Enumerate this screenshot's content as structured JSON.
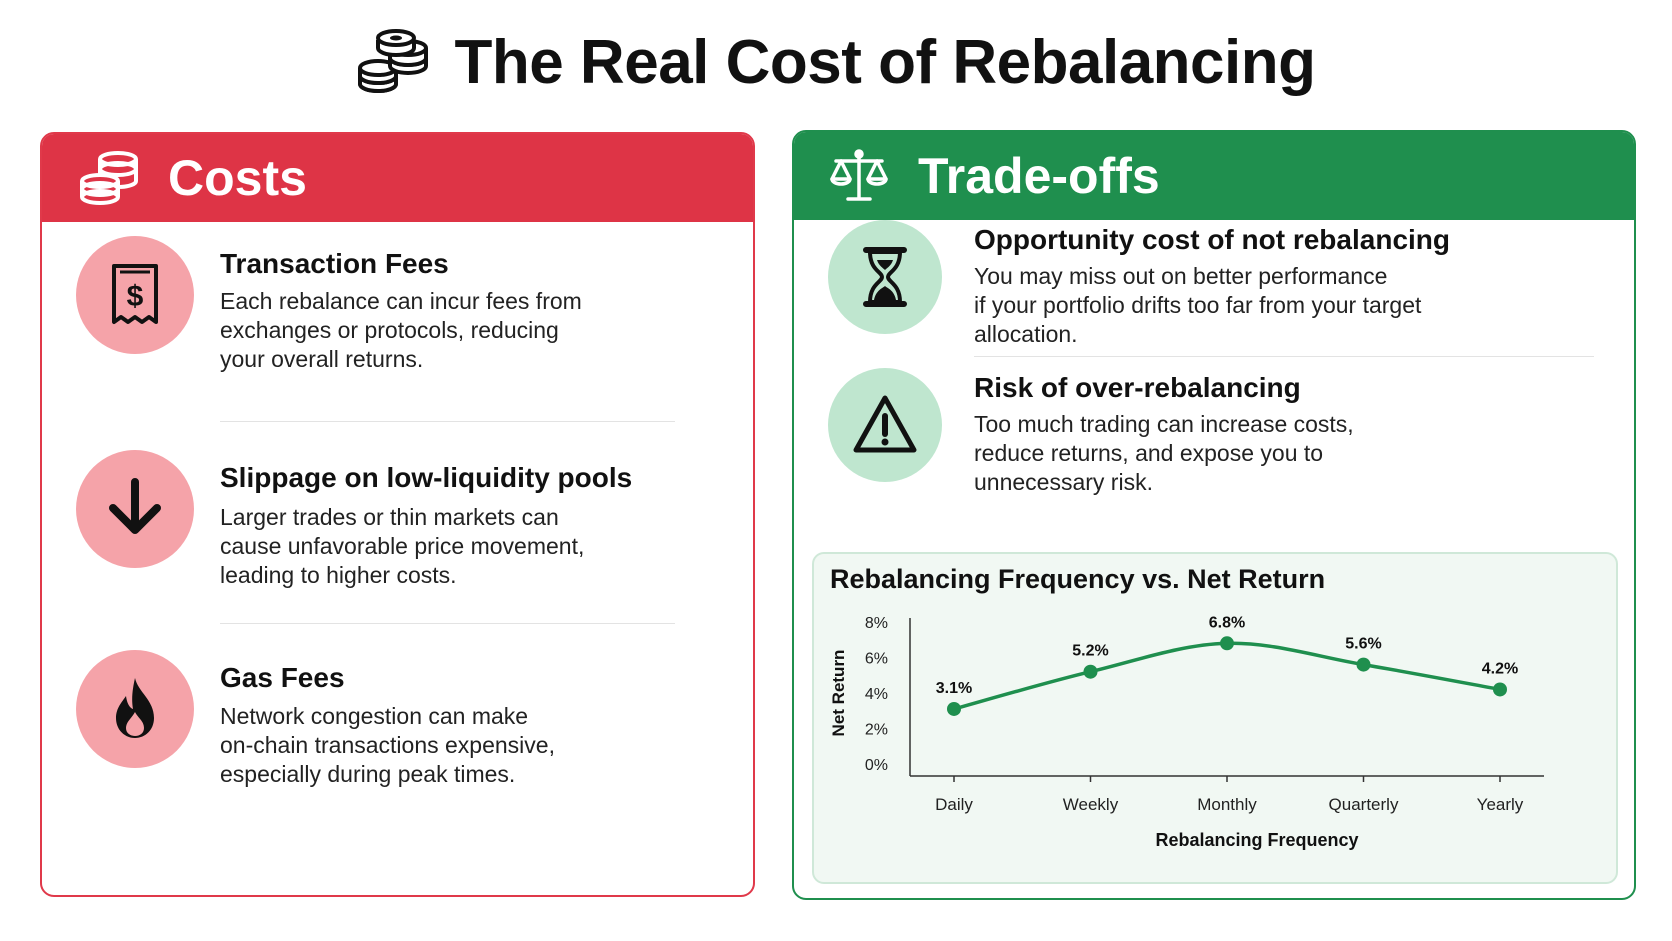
{
  "header": {
    "title": "The Real Cost of Rebalancing",
    "icon": "coins-icon"
  },
  "colors": {
    "costs": "#de3446",
    "trade_offs": "#1f8f4e",
    "costs_circle": "#f5a3a9",
    "trade_circle": "#bfe6cf",
    "line": "#1f8f4e"
  },
  "costs": {
    "title": "Costs",
    "icon": "coins-icon",
    "items": [
      {
        "icon": "receipt-dollar-icon",
        "title": "Transaction Fees",
        "lines": [
          "Each rebalance can incur fees from",
          "exchanges or protocols, reducing",
          "your overall returns."
        ]
      },
      {
        "icon": "arrow-down-icon",
        "title": "Slippage on low-liquidity pools",
        "lines": [
          "Larger trades or thin markets can",
          "cause unfavorable price movement,",
          "leading to higher costs."
        ]
      },
      {
        "icon": "flame-icon",
        "title": "Gas Fees",
        "lines": [
          "Network congestion can make",
          "on-chain transactions expensive,",
          "especially during peak times."
        ]
      }
    ]
  },
  "trade_offs": {
    "title": "Trade-offs",
    "icon": "balance-scale-icon",
    "items": [
      {
        "icon": "hourglass-icon",
        "title": "Opportunity cost of not rebalancing",
        "lines": [
          "You may miss out on better performance",
          "if your portfolio drifts too far from your target",
          "allocation."
        ]
      },
      {
        "icon": "warning-icon",
        "title": "Risk of over-rebalancing",
        "lines": [
          "Too much trading can increase costs,",
          "reduce returns, and expose you to",
          "unnecessary risk."
        ]
      }
    ]
  },
  "chart_data": {
    "type": "line",
    "title": "Rebalancing Frequency vs. Net Return",
    "xlabel": "Rebalancing Frequency",
    "ylabel": "Net Return",
    "categories": [
      "Daily",
      "Weekly",
      "Monthly",
      "Quarterly",
      "Yearly"
    ],
    "values": [
      3.1,
      5.2,
      6.8,
      5.6,
      4.2
    ],
    "data_labels": [
      "3.1%",
      "5.2%",
      "6.8%",
      "5.6%",
      "4.2%"
    ],
    "y_ticks": [
      "0%",
      "2%",
      "4%",
      "6%",
      "8%"
    ],
    "ylim": [
      0,
      8
    ],
    "grid": false,
    "legend": "none"
  }
}
